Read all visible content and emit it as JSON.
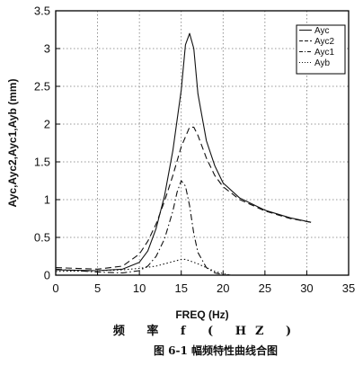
{
  "chart_data": {
    "type": "line",
    "title": "",
    "xlabel": "FREQ (Hz)",
    "ylabel": "Ayc,Ayc2,Ayc1,Ayb (mm)",
    "xlim": [
      0,
      35
    ],
    "ylim": [
      0,
      3.5
    ],
    "x_ticks": [
      "0",
      "5",
      "10",
      "15",
      "20",
      "25",
      "30",
      "35"
    ],
    "y_ticks": [
      "0",
      "0.5",
      "1",
      "1.5",
      "2",
      "2.5",
      "3",
      "3.5"
    ],
    "grid": true,
    "grid_style": "dotted",
    "legend_position": "top-right",
    "series": [
      {
        "name": "Ayc",
        "dash": "solid",
        "x": [
          0,
          5,
          8,
          10,
          11,
          12,
          13,
          14,
          15,
          15.5,
          16,
          16.5,
          17,
          18,
          19,
          20,
          22,
          25,
          28,
          30.5
        ],
        "values": [
          0.07,
          0.06,
          0.08,
          0.17,
          0.32,
          0.62,
          1.05,
          1.65,
          2.45,
          3.05,
          3.2,
          3.0,
          2.4,
          1.78,
          1.45,
          1.22,
          1.02,
          0.86,
          0.76,
          0.7
        ]
      },
      {
        "name": "Ayc2",
        "dash": "long-dash",
        "x": [
          0,
          5,
          8,
          10,
          11,
          12,
          13,
          14,
          15,
          16,
          16.5,
          17,
          18,
          19,
          20,
          22,
          25,
          28,
          30.5
        ],
        "values": [
          0.1,
          0.08,
          0.12,
          0.28,
          0.45,
          0.68,
          0.98,
          1.32,
          1.7,
          1.96,
          1.96,
          1.85,
          1.55,
          1.32,
          1.17,
          1.0,
          0.85,
          0.75,
          0.7
        ]
      },
      {
        "name": "Ayc1",
        "dash": "dash-dot",
        "x": [
          0,
          5,
          8,
          10,
          11,
          12,
          13,
          14,
          14.5,
          15,
          15.5,
          16,
          16.5,
          17,
          18,
          19,
          20,
          21
        ],
        "values": [
          0.08,
          0.04,
          0.03,
          0.06,
          0.12,
          0.25,
          0.48,
          0.85,
          1.1,
          1.25,
          1.18,
          0.92,
          0.55,
          0.3,
          0.1,
          0.03,
          0.01,
          0.0
        ]
      },
      {
        "name": "Ayb",
        "dash": "dotted",
        "x": [
          0,
          5,
          8,
          10,
          12,
          13,
          14,
          15,
          15.5,
          16,
          17,
          18,
          19,
          20,
          21
        ],
        "values": [
          0.05,
          0.06,
          0.07,
          0.09,
          0.12,
          0.15,
          0.18,
          0.21,
          0.21,
          0.19,
          0.15,
          0.1,
          0.05,
          0.02,
          0.0
        ]
      }
    ]
  },
  "captions": {
    "line1": "频 率 f ( HZ )",
    "line2": "图 6-1 幅频特性曲线合图"
  }
}
